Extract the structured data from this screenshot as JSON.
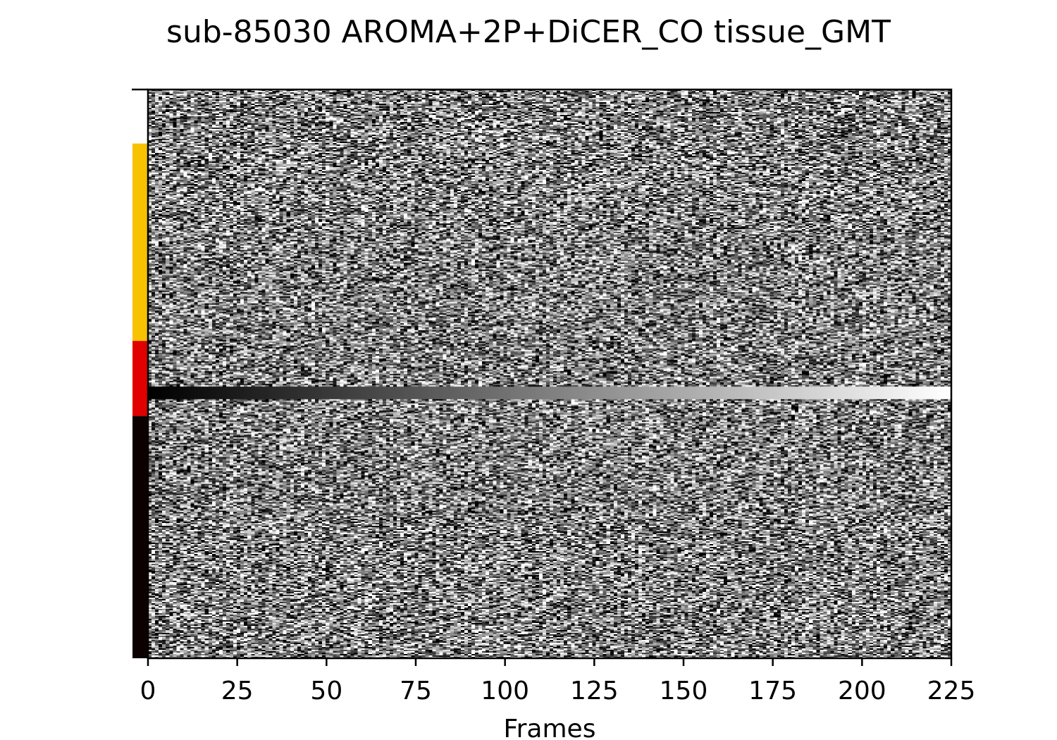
{
  "chart_data": {
    "type": "heatmap",
    "title": "sub-85030 AROMA+2P+DiCER_CO tissue_GMT",
    "xlabel": "Frames",
    "ylabel": "",
    "xlim": [
      0,
      225
    ],
    "x_ticks": [
      0,
      25,
      50,
      75,
      100,
      125,
      150,
      175,
      200,
      225
    ],
    "x_tick_labels": [
      "0",
      "25",
      "50",
      "75",
      "100",
      "125",
      "150",
      "175",
      "200",
      "225"
    ],
    "colormap": "gray",
    "background_noise": "random grey values across all rows and frames",
    "highlight_row": {
      "description": "single row ramping from black to white",
      "row_fraction_from_top": 0.532,
      "start_value": 0.0,
      "end_value": 1.0
    },
    "tissue_segments": [
      {
        "start": 0.0,
        "end": 0.095,
        "color": "#ffffff"
      },
      {
        "start": 0.095,
        "end": 0.442,
        "color": "#f7c200"
      },
      {
        "start": 0.442,
        "end": 0.574,
        "color": "#e00000"
      },
      {
        "start": 0.574,
        "end": 1.0,
        "color": "#0c0000"
      }
    ]
  }
}
